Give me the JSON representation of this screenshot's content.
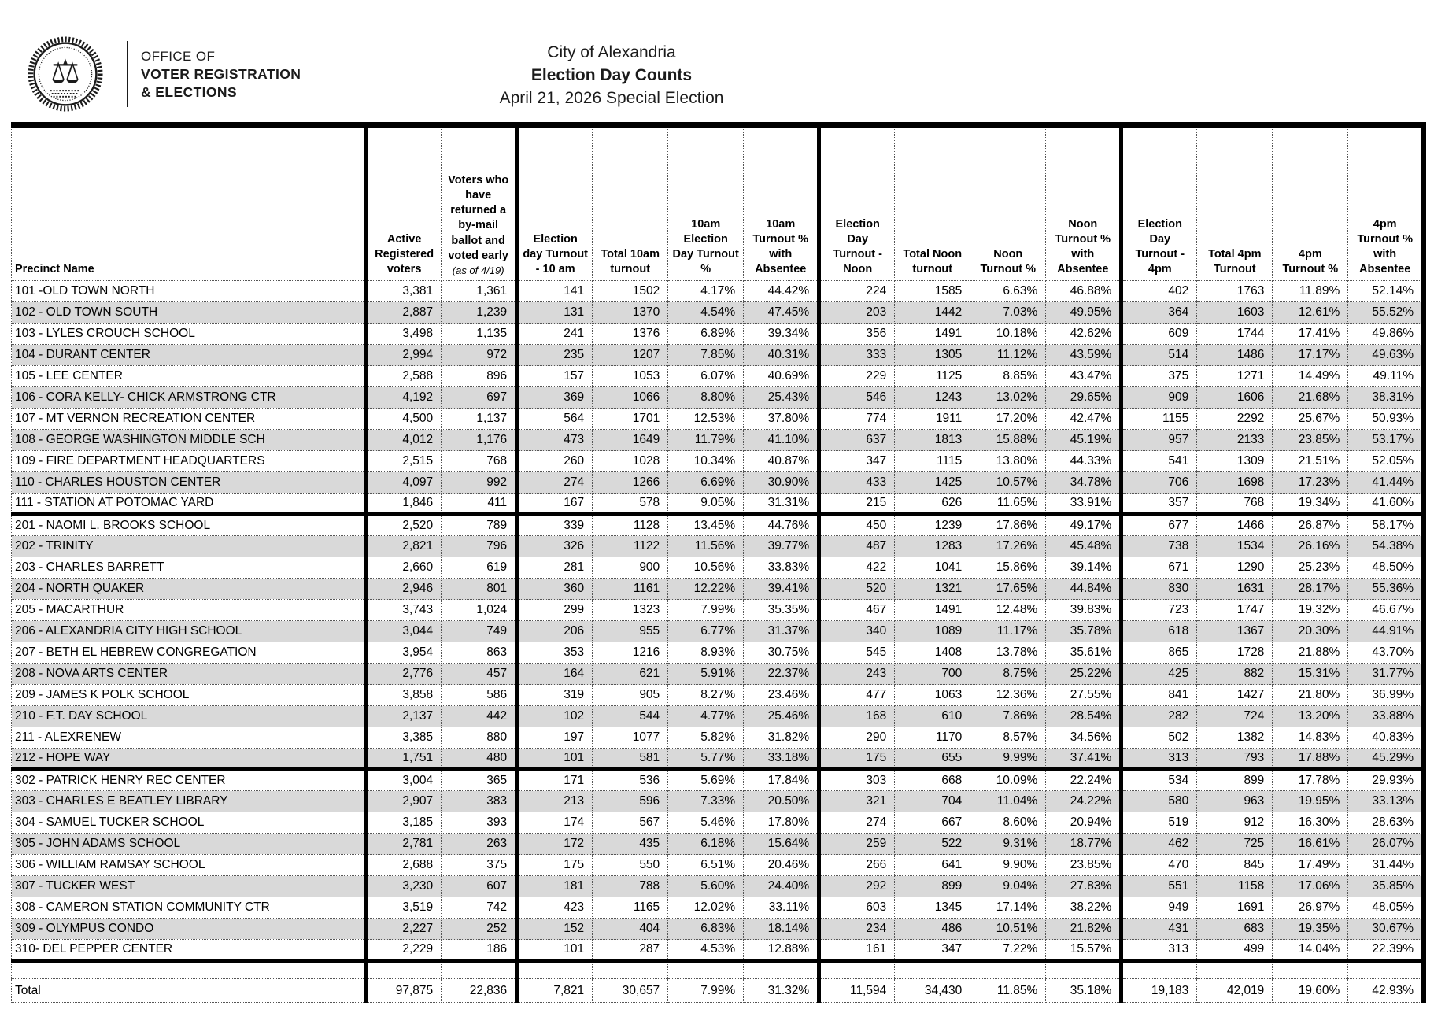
{
  "colors": {
    "row_stripe": "#d9d9d9",
    "rule": "#000000"
  },
  "logo": {
    "line1": "OFFICE OF",
    "line2": "VOTER REGISTRATION",
    "line3": "& ELECTIONS",
    "seal_icon": "city-of-alexandria-seal"
  },
  "titles": {
    "title": "City of Alexandria",
    "subtitle": "Election Day Counts",
    "date_line": "April 21, 2026 Special Election"
  },
  "table": {
    "columns": [
      {
        "label": "Precinct Name"
      },
      {
        "label": "Active Registered voters"
      },
      {
        "label": "Voters who have returned a by-mail ballot and voted early",
        "note": "(as of 4/19)"
      },
      {
        "label": "Election day Turnout - 10 am"
      },
      {
        "label": "Total 10am turnout"
      },
      {
        "label": "10am Election Day Turnout %"
      },
      {
        "label": "10am Turnout % with Absentee"
      },
      {
        "label": "Election Day Turnout - Noon"
      },
      {
        "label": "Total Noon turnout"
      },
      {
        "label": "Noon Turnout %"
      },
      {
        "label": "Noon Turnout % with Absentee"
      },
      {
        "label": "Election Day Turnout - 4pm"
      },
      {
        "label": "Total 4pm Turnout"
      },
      {
        "label": "4pm Turnout %"
      },
      {
        "label": "4pm Turnout % with Absentee"
      }
    ],
    "groups": [
      {
        "rows": [
          {
            "name": "101 -OLD TOWN NORTH",
            "values": [
              "3,381",
              "1,361",
              "141",
              "1502",
              "4.17%",
              "44.42%",
              "224",
              "1585",
              "6.63%",
              "46.88%",
              "402",
              "1763",
              "11.89%",
              "52.14%"
            ]
          },
          {
            "name": "102 - OLD TOWN SOUTH",
            "values": [
              "2,887",
              "1,239",
              "131",
              "1370",
              "4.54%",
              "47.45%",
              "203",
              "1442",
              "7.03%",
              "49.95%",
              "364",
              "1603",
              "12.61%",
              "55.52%"
            ]
          },
          {
            "name": "103 - LYLES CROUCH SCHOOL",
            "values": [
              "3,498",
              "1,135",
              "241",
              "1376",
              "6.89%",
              "39.34%",
              "356",
              "1491",
              "10.18%",
              "42.62%",
              "609",
              "1744",
              "17.41%",
              "49.86%"
            ]
          },
          {
            "name": "104 - DURANT CENTER",
            "values": [
              "2,994",
              "972",
              "235",
              "1207",
              "7.85%",
              "40.31%",
              "333",
              "1305",
              "11.12%",
              "43.59%",
              "514",
              "1486",
              "17.17%",
              "49.63%"
            ]
          },
          {
            "name": "105 - LEE CENTER",
            "values": [
              "2,588",
              "896",
              "157",
              "1053",
              "6.07%",
              "40.69%",
              "229",
              "1125",
              "8.85%",
              "43.47%",
              "375",
              "1271",
              "14.49%",
              "49.11%"
            ]
          },
          {
            "name": "106 - CORA KELLY- CHICK ARMSTRONG CTR",
            "values": [
              "4,192",
              "697",
              "369",
              "1066",
              "8.80%",
              "25.43%",
              "546",
              "1243",
              "13.02%",
              "29.65%",
              "909",
              "1606",
              "21.68%",
              "38.31%"
            ]
          },
          {
            "name": "107 - MT VERNON RECREATION CENTER",
            "values": [
              "4,500",
              "1,137",
              "564",
              "1701",
              "12.53%",
              "37.80%",
              "774",
              "1911",
              "17.20%",
              "42.47%",
              "1155",
              "2292",
              "25.67%",
              "50.93%"
            ]
          },
          {
            "name": "108 - GEORGE WASHINGTON MIDDLE SCH",
            "values": [
              "4,012",
              "1,176",
              "473",
              "1649",
              "11.79%",
              "41.10%",
              "637",
              "1813",
              "15.88%",
              "45.19%",
              "957",
              "2133",
              "23.85%",
              "53.17%"
            ]
          },
          {
            "name": "109 - FIRE DEPARTMENT HEADQUARTERS",
            "values": [
              "2,515",
              "768",
              "260",
              "1028",
              "10.34%",
              "40.87%",
              "347",
              "1115",
              "13.80%",
              "44.33%",
              "541",
              "1309",
              "21.51%",
              "52.05%"
            ]
          },
          {
            "name": "110 - CHARLES HOUSTON CENTER",
            "values": [
              "4,097",
              "992",
              "274",
              "1266",
              "6.69%",
              "30.90%",
              "433",
              "1425",
              "10.57%",
              "34.78%",
              "706",
              "1698",
              "17.23%",
              "41.44%"
            ]
          },
          {
            "name": "111 - STATION AT POTOMAC YARD",
            "values": [
              "1,846",
              "411",
              "167",
              "578",
              "9.05%",
              "31.31%",
              "215",
              "626",
              "11.65%",
              "33.91%",
              "357",
              "768",
              "19.34%",
              "41.60%"
            ]
          }
        ]
      },
      {
        "rows": [
          {
            "name": "201 - NAOMI L. BROOKS SCHOOL",
            "values": [
              "2,520",
              "789",
              "339",
              "1128",
              "13.45%",
              "44.76%",
              "450",
              "1239",
              "17.86%",
              "49.17%",
              "677",
              "1466",
              "26.87%",
              "58.17%"
            ]
          },
          {
            "name": "202 - TRINITY",
            "values": [
              "2,821",
              "796",
              "326",
              "1122",
              "11.56%",
              "39.77%",
              "487",
              "1283",
              "17.26%",
              "45.48%",
              "738",
              "1534",
              "26.16%",
              "54.38%"
            ]
          },
          {
            "name": "203 - CHARLES BARRETT",
            "values": [
              "2,660",
              "619",
              "281",
              "900",
              "10.56%",
              "33.83%",
              "422",
              "1041",
              "15.86%",
              "39.14%",
              "671",
              "1290",
              "25.23%",
              "48.50%"
            ]
          },
          {
            "name": "204 - NORTH QUAKER",
            "values": [
              "2,946",
              "801",
              "360",
              "1161",
              "12.22%",
              "39.41%",
              "520",
              "1321",
              "17.65%",
              "44.84%",
              "830",
              "1631",
              "28.17%",
              "55.36%"
            ]
          },
          {
            "name": "205 - MACARTHUR",
            "values": [
              "3,743",
              "1,024",
              "299",
              "1323",
              "7.99%",
              "35.35%",
              "467",
              "1491",
              "12.48%",
              "39.83%",
              "723",
              "1747",
              "19.32%",
              "46.67%"
            ]
          },
          {
            "name": "206 - ALEXANDRIA CITY HIGH SCHOOL",
            "values": [
              "3,044",
              "749",
              "206",
              "955",
              "6.77%",
              "31.37%",
              "340",
              "1089",
              "11.17%",
              "35.78%",
              "618",
              "1367",
              "20.30%",
              "44.91%"
            ]
          },
          {
            "name": "207 -  BETH EL HEBREW CONGREGATION",
            "values": [
              "3,954",
              "863",
              "353",
              "1216",
              "8.93%",
              "30.75%",
              "545",
              "1408",
              "13.78%",
              "35.61%",
              "865",
              "1728",
              "21.88%",
              "43.70%"
            ]
          },
          {
            "name": "208 - NOVA ARTS CENTER",
            "values": [
              "2,776",
              "457",
              "164",
              "621",
              "5.91%",
              "22.37%",
              "243",
              "700",
              "8.75%",
              "25.22%",
              "425",
              "882",
              "15.31%",
              "31.77%"
            ]
          },
          {
            "name": "209 - JAMES K POLK SCHOOL",
            "values": [
              "3,858",
              "586",
              "319",
              "905",
              "8.27%",
              "23.46%",
              "477",
              "1063",
              "12.36%",
              "27.55%",
              "841",
              "1427",
              "21.80%",
              "36.99%"
            ]
          },
          {
            "name": "210 - F.T. DAY SCHOOL",
            "values": [
              "2,137",
              "442",
              "102",
              "544",
              "4.77%",
              "25.46%",
              "168",
              "610",
              "7.86%",
              "28.54%",
              "282",
              "724",
              "13.20%",
              "33.88%"
            ]
          },
          {
            "name": "211 - ALEXRENEW",
            "values": [
              "3,385",
              "880",
              "197",
              "1077",
              "5.82%",
              "31.82%",
              "290",
              "1170",
              "8.57%",
              "34.56%",
              "502",
              "1382",
              "14.83%",
              "40.83%"
            ]
          },
          {
            "name": "212 - HOPE WAY",
            "values": [
              "1,751",
              "480",
              "101",
              "581",
              "5.77%",
              "33.18%",
              "175",
              "655",
              "9.99%",
              "37.41%",
              "313",
              "793",
              "17.88%",
              "45.29%"
            ]
          }
        ]
      },
      {
        "rows": [
          {
            "name": "302 - PATRICK HENRY REC CENTER",
            "values": [
              "3,004",
              "365",
              "171",
              "536",
              "5.69%",
              "17.84%",
              "303",
              "668",
              "10.09%",
              "22.24%",
              "534",
              "899",
              "17.78%",
              "29.93%"
            ]
          },
          {
            "name": "303 - CHARLES E BEATLEY LIBRARY",
            "values": [
              "2,907",
              "383",
              "213",
              "596",
              "7.33%",
              "20.50%",
              "321",
              "704",
              "11.04%",
              "24.22%",
              "580",
              "963",
              "19.95%",
              "33.13%"
            ]
          },
          {
            "name": "304 - SAMUEL TUCKER SCHOOL",
            "values": [
              "3,185",
              "393",
              "174",
              "567",
              "5.46%",
              "17.80%",
              "274",
              "667",
              "8.60%",
              "20.94%",
              "519",
              "912",
              "16.30%",
              "28.63%"
            ]
          },
          {
            "name": "305 - JOHN ADAMS SCHOOL",
            "values": [
              "2,781",
              "263",
              "172",
              "435",
              "6.18%",
              "15.64%",
              "259",
              "522",
              "9.31%",
              "18.77%",
              "462",
              "725",
              "16.61%",
              "26.07%"
            ]
          },
          {
            "name": "306 - WILLIAM RAMSAY SCHOOL",
            "values": [
              "2,688",
              "375",
              "175",
              "550",
              "6.51%",
              "20.46%",
              "266",
              "641",
              "9.90%",
              "23.85%",
              "470",
              "845",
              "17.49%",
              "31.44%"
            ]
          },
          {
            "name": "307 - TUCKER WEST",
            "values": [
              "3,230",
              "607",
              "181",
              "788",
              "5.60%",
              "24.40%",
              "292",
              "899",
              "9.04%",
              "27.83%",
              "551",
              "1158",
              "17.06%",
              "35.85%"
            ]
          },
          {
            "name": "308 - CAMERON STATION COMMUNITY CTR",
            "values": [
              "3,519",
              "742",
              "423",
              "1165",
              "12.02%",
              "33.11%",
              "603",
              "1345",
              "17.14%",
              "38.22%",
              "949",
              "1691",
              "26.97%",
              "48.05%"
            ]
          },
          {
            "name": "309 - OLYMPUS CONDO",
            "values": [
              "2,227",
              "252",
              "152",
              "404",
              "6.83%",
              "18.14%",
              "234",
              "486",
              "10.51%",
              "21.82%",
              "431",
              "683",
              "19.35%",
              "30.67%"
            ]
          },
          {
            "name": "310- DEL PEPPER CENTER",
            "values": [
              "2,229",
              "186",
              "101",
              "287",
              "4.53%",
              "12.88%",
              "161",
              "347",
              "7.22%",
              "15.57%",
              "313",
              "499",
              "14.04%",
              "22.39%"
            ]
          }
        ]
      }
    ],
    "total_row": {
      "name": "Total",
      "values": [
        "97,875",
        "22,836",
        "7,821",
        "30,657",
        "7.99%",
        "31.32%",
        "11,594",
        "34,430",
        "11.85%",
        "35.18%",
        "19,183",
        "42,019",
        "19.60%",
        "42.93%"
      ]
    }
  }
}
